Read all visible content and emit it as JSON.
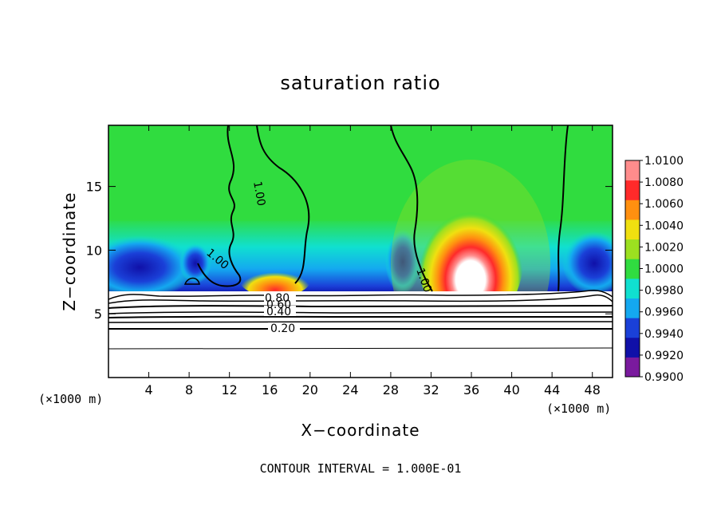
{
  "chart_data": {
    "type": "heatmap",
    "title": "saturation ratio",
    "xlabel": "X−coordinate",
    "ylabel": "Z−coordinate",
    "x_unit_left": "(×1000 m)",
    "x_unit_right": "(×1000 m)",
    "xlim": [
      0,
      50
    ],
    "ylim": [
      0,
      19.8
    ],
    "xticks": [
      4,
      8,
      12,
      16,
      20,
      24,
      28,
      32,
      36,
      40,
      44,
      48
    ],
    "yticks": [
      5,
      10,
      15
    ],
    "colorbar": {
      "levels": [
        0.99,
        0.992,
        0.994,
        0.996,
        0.998,
        1.0,
        1.002,
        1.004,
        1.006,
        1.008,
        1.01
      ],
      "labels": [
        "0.9900",
        "0.9920",
        "0.9940",
        "0.9960",
        "0.9980",
        "1.0000",
        "1.0020",
        "1.0040",
        "1.0060",
        "1.0080",
        "1.0100"
      ],
      "colors": [
        "#7a1a9e",
        "#1010a8",
        "#1a40d8",
        "#14a8f0",
        "#10e0d0",
        "#30dc40",
        "#9ce020",
        "#f0e010",
        "#ff9010",
        "#ff2a2a",
        "#ff8c8c"
      ]
    },
    "contour_labels": [
      "1.00",
      "1.00",
      "1.00",
      "0.80",
      "0.60",
      "0.40",
      "0.20"
    ],
    "contour_interval_text": "CONTOUR INTERVAL = 1.000E-01"
  }
}
